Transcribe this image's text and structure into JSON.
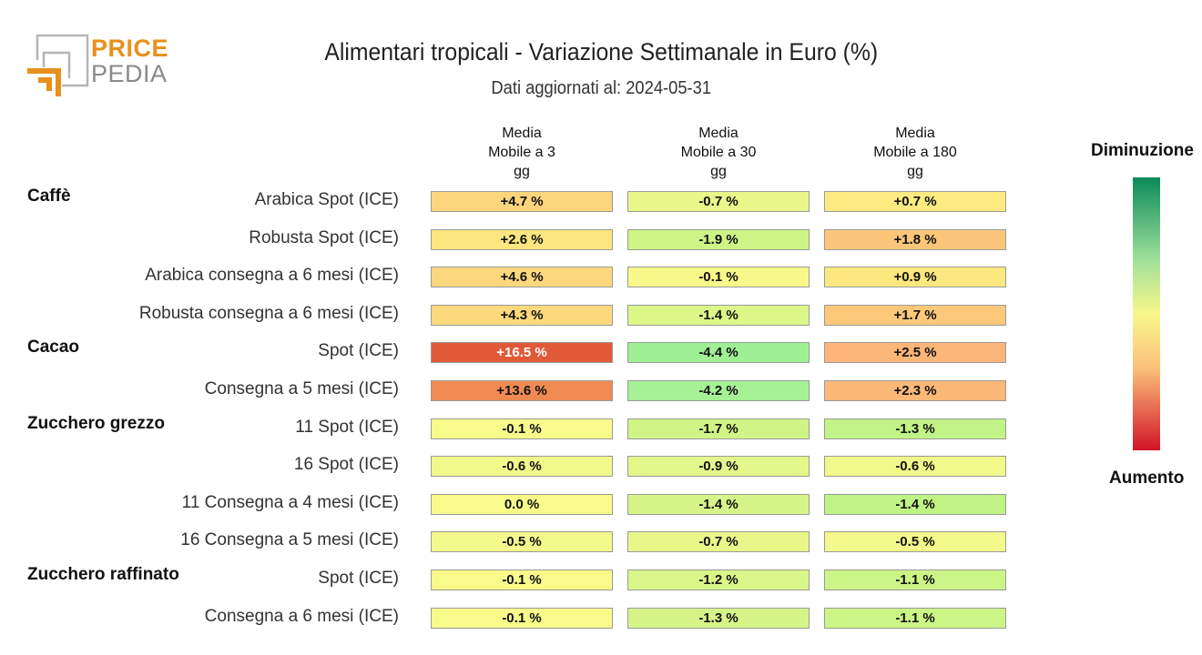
{
  "logo": {
    "line1": "PRICE",
    "line2": "PEDIA"
  },
  "title": "Alimentari tropicali - Variazione Settimanale in Euro (%)",
  "subtitle": "Dati aggiornati al: 2024-05-31",
  "legend": {
    "top": "Diminuzione",
    "bottom": "Aumento"
  },
  "chart_data": {
    "type": "heatmap",
    "title": "Alimentari tropicali - Variazione Settimanale in Euro (%)",
    "subtitle": "Dati aggiornati al: 2024-05-31",
    "columns": [
      {
        "lines": [
          "Media",
          "Mobile a 3",
          "gg"
        ]
      },
      {
        "lines": [
          "Media",
          "Mobile a 30",
          "gg"
        ]
      },
      {
        "lines": [
          "Media",
          "Mobile a 180",
          "gg"
        ]
      }
    ],
    "groups": [
      {
        "name": "Caffè",
        "rows": [
          {
            "label": "Arabica Spot (ICE)",
            "values": [
              "+4.7 %",
              "-0.7 %",
              "+0.7 %"
            ]
          },
          {
            "label": "Robusta Spot (ICE)",
            "values": [
              "+2.6 %",
              "-1.9 %",
              "+1.8 %"
            ]
          },
          {
            "label": "Arabica consegna a 6 mesi (ICE)",
            "values": [
              "+4.6 %",
              "-0.1 %",
              "+0.9 %"
            ]
          },
          {
            "label": "Robusta consegna a 6 mesi (ICE)",
            "values": [
              "+4.3 %",
              "-1.4 %",
              "+1.7 %"
            ]
          }
        ]
      },
      {
        "name": "Cacao",
        "rows": [
          {
            "label": "Spot (ICE)",
            "values": [
              "+16.5 %",
              "-4.4 %",
              "+2.5 %"
            ]
          },
          {
            "label": "Consegna a 5 mesi (ICE)",
            "values": [
              "+13.6 %",
              "-4.2 %",
              "+2.3 %"
            ]
          }
        ]
      },
      {
        "name": "Zucchero grezzo",
        "rows": [
          {
            "label": "11 Spot (ICE)",
            "values": [
              "-0.1 %",
              "-1.7 %",
              "-1.3 %"
            ]
          },
          {
            "label": "16 Spot (ICE)",
            "values": [
              "-0.6 %",
              "-0.9 %",
              "-0.6 %"
            ]
          },
          {
            "label": "11 Consegna a 4 mesi (ICE)",
            "values": [
              "0.0 %",
              "-1.4 %",
              "-1.4 %"
            ]
          },
          {
            "label": "16 Consegna a 5 mesi (ICE)",
            "values": [
              "-0.5 %",
              "-0.7 %",
              "-0.5 %"
            ]
          }
        ]
      },
      {
        "name": "Zucchero raffinato",
        "rows": [
          {
            "label": "Spot (ICE)",
            "values": [
              "-0.1 %",
              "-1.2 %",
              "-1.1 %"
            ]
          },
          {
            "label": "Consegna a 6 mesi (ICE)",
            "values": [
              "-0.1 %",
              "-1.3 %",
              "-1.1 %"
            ]
          }
        ]
      }
    ],
    "cell_colors": [
      [
        "#fdd57c",
        "#e9f78a",
        "#fdeb82"
      ],
      [
        "#fde67f",
        "#cdf585",
        "#fcc67a"
      ],
      [
        "#fdd77d",
        "#f8f98a",
        "#fde77f"
      ],
      [
        "#fdd97d",
        "#dcf788",
        "#fcc97b"
      ],
      [
        "#e05a38",
        "#9ff094",
        "#fcb578"
      ],
      [
        "#ef8a52",
        "#a6f196",
        "#fcb878"
      ],
      [
        "#f8fa8a",
        "#d0f586",
        "#c1f386"
      ],
      [
        "#f1f98a",
        "#e3f78a",
        "#f1f98a"
      ],
      [
        "#f9fa8a",
        "#d6f588",
        "#bff384"
      ],
      [
        "#f3f98a",
        "#e9f78a",
        "#f3f98a"
      ],
      [
        "#f8fa8a",
        "#d9f689",
        "#ccf587"
      ],
      [
        "#f8fa8a",
        "#d6f588",
        "#ccf587"
      ]
    ]
  }
}
